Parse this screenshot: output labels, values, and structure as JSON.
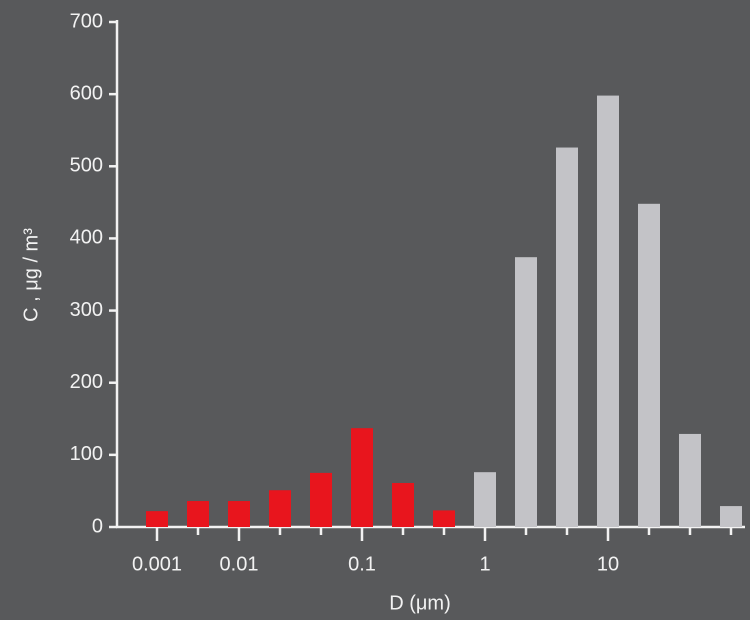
{
  "chart_data": {
    "type": "bar",
    "y_label": "C ,  μg / m³",
    "x_label": "D (μm)",
    "categories": [
      "0.001",
      null,
      "0.01",
      null,
      null,
      "0.1",
      null,
      null,
      "1",
      null,
      null,
      "10",
      null,
      null,
      null
    ],
    "values": [
      22,
      36,
      36,
      51,
      75,
      137,
      61,
      23,
      76,
      374,
      526,
      598,
      448,
      129,
      29
    ],
    "colors": [
      "#e8151d",
      "#e8151d",
      "#e8151d",
      "#e8151d",
      "#e8151d",
      "#e8151d",
      "#e8151d",
      "#e8151d",
      "#c3c3c7",
      "#c3c3c7",
      "#c3c3c7",
      "#c3c3c7",
      "#c3c3c7",
      "#c3c3c7",
      "#c3c3c7"
    ],
    "ylim": [
      0,
      700
    ],
    "yticks": [
      0,
      100,
      200,
      300,
      400,
      500,
      600,
      700
    ]
  }
}
